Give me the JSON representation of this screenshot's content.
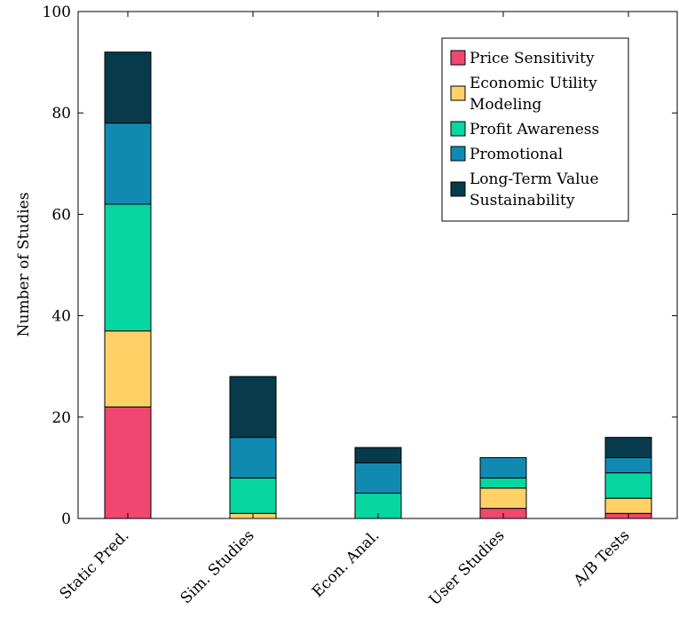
{
  "chart_data": {
    "type": "bar",
    "stacked": true,
    "title": "",
    "xlabel": "",
    "ylabel": "Number of Studies",
    "ylim": [
      0,
      100
    ],
    "yticks": [
      0,
      20,
      40,
      60,
      80,
      100
    ],
    "categories": [
      "Static Pred.",
      "Sim. Studies",
      "Econ. Anal.",
      "User Studies",
      "A/B Tests"
    ],
    "series": [
      {
        "name": "Price Sensitivity",
        "color": "#ef476f",
        "values": [
          22,
          0,
          0,
          2,
          1
        ]
      },
      {
        "name": "Economic Utility Modeling",
        "legend_lines": [
          "Economic Utility",
          "Modeling"
        ],
        "color": "#ffd166",
        "values": [
          15,
          1,
          0,
          4,
          3
        ]
      },
      {
        "name": "Profit Awareness",
        "color": "#06d6a0",
        "values": [
          25,
          7,
          5,
          2,
          5
        ]
      },
      {
        "name": "Promotional",
        "color": "#118ab2",
        "values": [
          16,
          8,
          6,
          4,
          3
        ]
      },
      {
        "name": "Long-Term Value Sustainability",
        "legend_lines": [
          "Long-Term Value",
          "Sustainability"
        ],
        "color": "#073b4c",
        "values": [
          14,
          12,
          3,
          0,
          4
        ]
      }
    ],
    "grid": false,
    "legend_position": "top-right"
  }
}
